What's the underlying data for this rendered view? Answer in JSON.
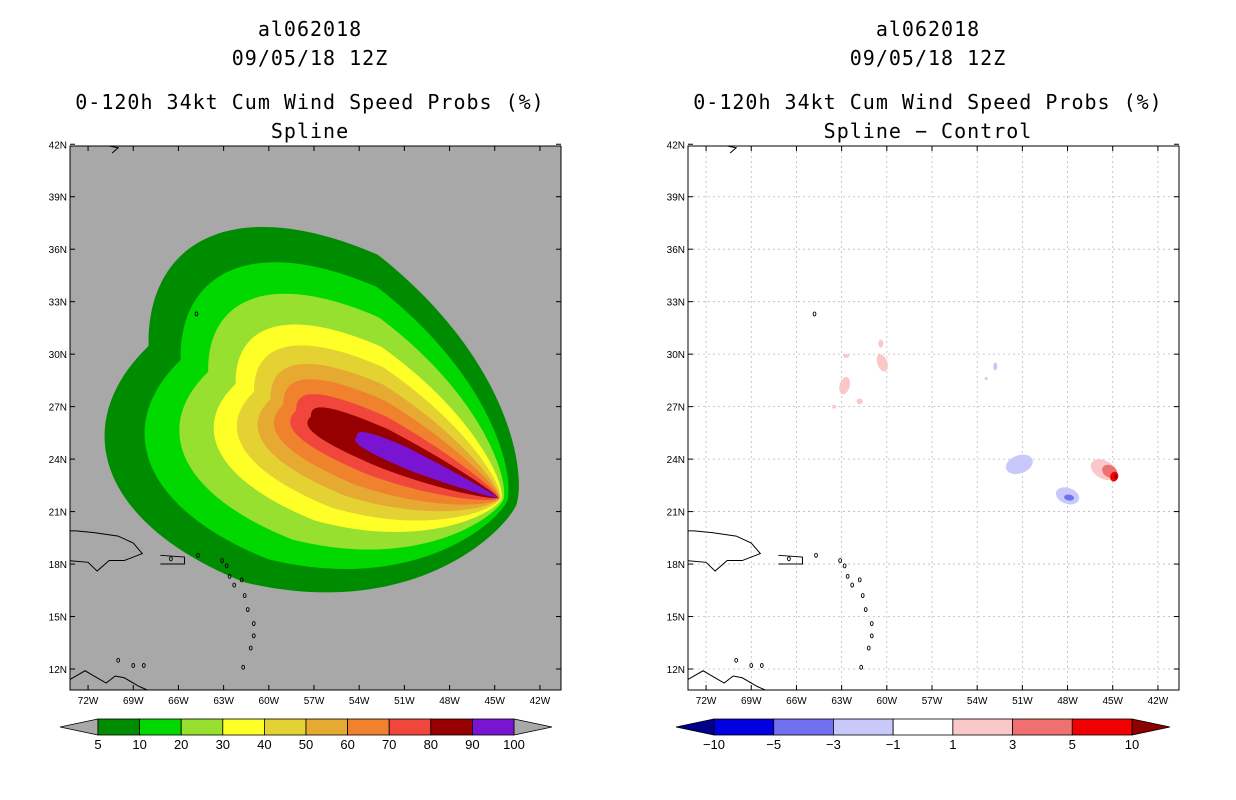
{
  "left_panel": {
    "storm_id": "al062018",
    "datetime": "09/05/18 12Z",
    "product": "0-120h 34kt Cum Wind Speed Probs (%)",
    "subtitle": "Spline",
    "background_color": "#a8a8a8",
    "colorbar": {
      "labels": [
        "5",
        "10",
        "20",
        "30",
        "40",
        "50",
        "60",
        "70",
        "80",
        "90",
        "100"
      ],
      "colors": [
        "#008c00",
        "#00d800",
        "#98e030",
        "#ffff28",
        "#e4d232",
        "#e6aa32",
        "#f0822e",
        "#f0463c",
        "#960000",
        "#7814d2"
      ],
      "end_colors": [
        "#a8a8a8",
        "#a8a8a8"
      ]
    }
  },
  "right_panel": {
    "storm_id": "al062018",
    "datetime": "09/05/18 12Z",
    "product": "0-120h 34kt Cum Wind Speed Probs (%)",
    "subtitle": "Spline − Control",
    "background_color": "#ffffff",
    "colorbar": {
      "labels": [
        "−10",
        "−5",
        "−3",
        "−1",
        "1",
        "3",
        "5",
        "10"
      ],
      "colors": [
        "#0000e0",
        "#7070f0",
        "#c8c8fa",
        "#ffffff",
        "#fac8c8",
        "#f07070",
        "#f00000"
      ],
      "end_colors": [
        "#00008c",
        "#8c0000"
      ]
    }
  },
  "axes": {
    "lon_labels": [
      "72W",
      "69W",
      "66W",
      "63W",
      "60W",
      "57W",
      "54W",
      "51W",
      "48W",
      "45W",
      "42W"
    ],
    "lat_labels": [
      "12N",
      "15N",
      "18N",
      "21N",
      "24N",
      "27N",
      "30N",
      "33N",
      "36N",
      "39N",
      "42N"
    ],
    "lon_values": [
      -72,
      -69,
      -66,
      -63,
      -60,
      -57,
      -54,
      -51,
      -48,
      -45,
      -42
    ],
    "lat_values": [
      12,
      15,
      18,
      21,
      24,
      27,
      30,
      33,
      36,
      39,
      42
    ],
    "lon_range": [
      -73.2,
      -40.6
    ],
    "lat_range": [
      10.8,
      41.9
    ]
  },
  "wind_prob_field": {
    "units": "percent",
    "storm_track_start": {
      "lon": -55.5,
      "lat": 25.8
    },
    "storm_track_end": {
      "lon": -44.8,
      "lat": 21.8
    },
    "contour_levels": [
      5,
      10,
      20,
      30,
      40,
      50,
      60,
      70,
      80,
      90,
      100
    ]
  },
  "difference_field": {
    "units": "percent",
    "positive_areas": [
      {
        "lon": -62.8,
        "lat": 28.2,
        "value": 1
      },
      {
        "lon": -60.3,
        "lat": 29.5,
        "value": 1
      },
      {
        "lon": -45.5,
        "lat": 23.4,
        "value": 3
      },
      {
        "lon": -45.0,
        "lat": 23.1,
        "value": 10
      }
    ],
    "negative_areas": [
      {
        "lon": -51.2,
        "lat": 23.7,
        "value": -1
      },
      {
        "lon": -48.0,
        "lat": 21.9,
        "value": -3
      },
      {
        "lon": -52.8,
        "lat": 29.2,
        "value": -1
      }
    ]
  }
}
